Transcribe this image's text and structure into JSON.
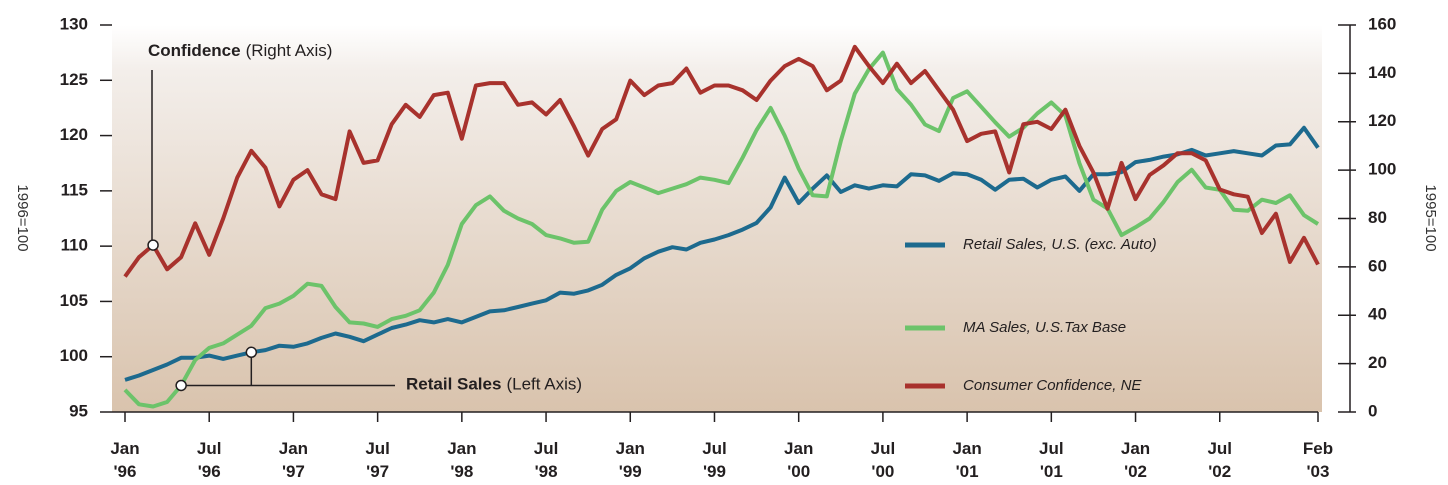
{
  "chart_data": {
    "type": "line",
    "annotations": [
      {
        "bold": "Confidence",
        "text": "(Right Axis)"
      },
      {
        "bold": "Retail Sales",
        "text": "(Left Axis)"
      }
    ],
    "ylabel": "1996=100",
    "y2label": "1995=100",
    "categories": [
      "Jan '96",
      null,
      null,
      null,
      null,
      null,
      "Jul '96",
      null,
      null,
      null,
      null,
      null,
      "Jan '97",
      null,
      null,
      null,
      null,
      null,
      "Jul '97",
      null,
      null,
      null,
      null,
      null,
      "Jan '98",
      null,
      null,
      null,
      null,
      null,
      "Jul '98",
      null,
      null,
      null,
      null,
      null,
      "Jan '99",
      null,
      null,
      null,
      null,
      null,
      "Jul '99",
      null,
      null,
      null,
      null,
      null,
      "Jan '00",
      null,
      null,
      null,
      null,
      null,
      "Jul '00",
      null,
      null,
      null,
      null,
      null,
      "Jan '01",
      null,
      null,
      null,
      null,
      null,
      "Jul '01",
      null,
      null,
      null,
      null,
      null,
      "Jan '02",
      null,
      null,
      null,
      null,
      null,
      "Jul '02",
      null,
      null,
      null,
      null,
      null,
      null,
      "Feb '03"
    ],
    "ylim": [
      95,
      130
    ],
    "yticks": [
      95,
      100,
      105,
      110,
      115,
      120,
      125,
      130
    ],
    "y2lim": [
      0,
      160
    ],
    "y2ticks": [
      0,
      20,
      40,
      60,
      80,
      100,
      120,
      140,
      160
    ],
    "series": [
      {
        "name": "Retail Sales, U.S. (exc. Auto)",
        "color": "#1d6a8e",
        "values": [
          97.9,
          98.3,
          98.8,
          99.3,
          99.9,
          99.9,
          100.1,
          99.8,
          100.1,
          100.4,
          100.6,
          101.0,
          100.9,
          101.2,
          101.7,
          102.1,
          101.8,
          101.4,
          102.0,
          102.6,
          102.9,
          103.3,
          103.1,
          103.4,
          103.1,
          103.6,
          104.1,
          104.2,
          104.5,
          104.8,
          105.1,
          105.8,
          105.7,
          106.0,
          106.5,
          107.4,
          108.0,
          108.9,
          109.5,
          109.9,
          109.7,
          110.3,
          110.6,
          111.0,
          111.5,
          112.1,
          113.5,
          116.2,
          113.9,
          115.2,
          116.4,
          114.9,
          115.5,
          115.2,
          115.5,
          115.4,
          116.5,
          116.4,
          115.9,
          116.6,
          116.5,
          116.0,
          115.1,
          116.0,
          116.1,
          115.3,
          116.0,
          116.3,
          115.0,
          116.5,
          116.5,
          116.7,
          117.6,
          117.8,
          118.1,
          118.3,
          118.7,
          118.2,
          118.4,
          118.6,
          118.4,
          118.2,
          119.1,
          119.2,
          120.7,
          118.9
        ]
      },
      {
        "name": "MA Sales, U.S.Tax Base",
        "color": "#6cc36a",
        "values": [
          97.0,
          95.7,
          95.5,
          95.9,
          97.4,
          99.7,
          100.8,
          101.2,
          102.0,
          102.8,
          104.4,
          104.8,
          105.5,
          106.6,
          106.4,
          104.5,
          103.1,
          103.0,
          102.7,
          103.4,
          103.7,
          104.2,
          105.8,
          108.3,
          112.0,
          113.7,
          114.5,
          113.2,
          112.5,
          112.0,
          111.0,
          110.7,
          110.3,
          110.4,
          113.3,
          115.0,
          115.8,
          115.3,
          114.8,
          115.2,
          115.6,
          116.2,
          116.0,
          115.7,
          118.0,
          120.5,
          122.5,
          120.0,
          117.0,
          114.6,
          114.5,
          119.5,
          123.8,
          126.0,
          127.5,
          124.2,
          122.8,
          121.0,
          120.4,
          123.4,
          124.0,
          122.6,
          121.2,
          119.9,
          120.7,
          122.0,
          123.0,
          121.8,
          117.5,
          114.2,
          113.4,
          111.0,
          111.7,
          112.5,
          114.0,
          115.8,
          116.9,
          115.3,
          115.1,
          113.3,
          113.2,
          114.2,
          113.9,
          114.6,
          112.8,
          112.0
        ]
      },
      {
        "name": "Consumer Confidence, NE",
        "color": "#a8322d",
        "axis": "y2",
        "values": [
          56,
          64,
          69,
          59,
          64,
          78,
          65,
          80,
          97,
          108,
          101,
          85,
          96,
          100,
          90,
          88,
          116,
          103,
          104,
          119,
          127,
          122,
          131,
          132,
          113,
          135,
          136,
          136,
          127,
          128,
          123,
          129,
          118,
          106,
          117,
          121,
          137,
          131,
          135,
          136,
          142,
          132,
          135,
          135,
          133,
          129,
          137,
          143,
          146,
          143,
          133,
          137,
          151,
          143,
          136,
          144,
          136,
          141,
          133,
          125,
          112,
          115,
          116,
          99,
          119,
          120,
          117,
          125,
          110,
          99,
          84,
          103,
          88,
          98,
          102,
          107,
          107,
          104,
          92,
          90,
          89,
          74,
          82,
          62,
          72,
          61
        ]
      }
    ]
  }
}
